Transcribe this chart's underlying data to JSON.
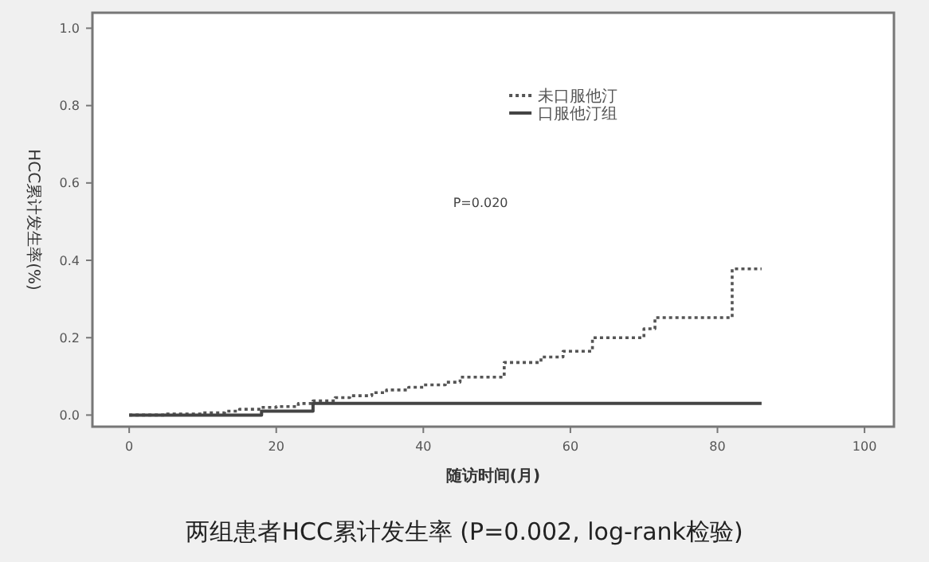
{
  "chart_data": {
    "type": "step",
    "title": "两组患者HCC累计发生率 (P=0.002, log-rank检验)",
    "xlabel": "随访时间(月)",
    "ylabel": "HCC累计发生率(%)",
    "annotations": [
      "P=0.020"
    ],
    "xlim": [
      -5,
      104
    ],
    "xticks": [
      0,
      20,
      40,
      60,
      80,
      100
    ],
    "ylim": [
      -0.03,
      1.04
    ],
    "yticks": [
      {
        "value": 0,
        "label": "0.0"
      },
      {
        "value": 0.2,
        "label": "0.2"
      },
      {
        "value": 0.4,
        "label": "0.4"
      },
      {
        "value": 0.6,
        "label": "0.6"
      },
      {
        "value": 0.8,
        "label": "0.8"
      },
      {
        "value": 1,
        "label": "1.0"
      }
    ],
    "legend": "top right",
    "grid": false,
    "series": [
      {
        "name": "未口服他汀",
        "color": "#555555",
        "line_style": "dotted",
        "x": [
          0,
          5,
          10,
          13,
          15,
          18,
          20,
          23,
          25,
          28,
          30,
          33,
          35,
          38,
          40,
          43,
          45,
          51,
          56,
          59,
          63,
          70,
          71.5,
          82,
          86
        ],
        "values": [
          0,
          0.003,
          0.006,
          0.01,
          0.015,
          0.02,
          0.022,
          0.03,
          0.037,
          0.045,
          0.05,
          0.058,
          0.065,
          0.072,
          0.078,
          0.085,
          0.098,
          0.136,
          0.15,
          0.165,
          0.2,
          0.223,
          0.252,
          0.378,
          0.378
        ]
      },
      {
        "name": "口服他汀组",
        "color": "#444444",
        "line_style": "solid",
        "x": [
          0,
          18,
          25,
          86
        ],
        "values": [
          0,
          0.01,
          0.03,
          0.03
        ]
      }
    ]
  }
}
